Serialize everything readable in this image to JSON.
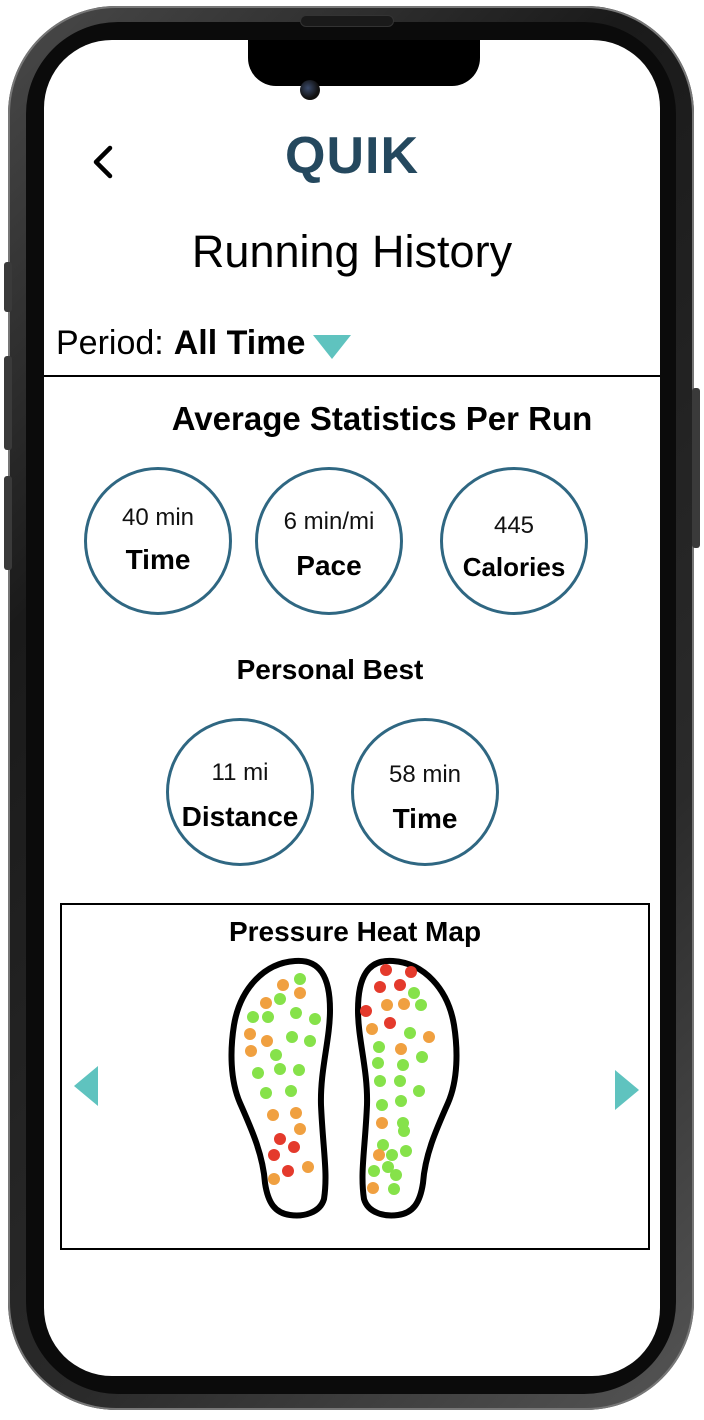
{
  "header": {
    "app_title": "QUIK",
    "page_title": "Running History"
  },
  "period": {
    "label": "Period:",
    "value": "All Time"
  },
  "average_stats": {
    "title": "Average Statistics Per Run",
    "items": [
      {
        "value": "40 min",
        "label": "Time"
      },
      {
        "value": "6 min/mi",
        "label": "Pace"
      },
      {
        "value": "445",
        "label": "Calories"
      }
    ]
  },
  "personal_best": {
    "title": "Personal Best",
    "items": [
      {
        "value": "11 mi",
        "label": "Distance"
      },
      {
        "value": "58 min",
        "label": "Time"
      }
    ]
  },
  "heat_map": {
    "title": "Pressure Heat Map",
    "colors": {
      "low": "#86e24a",
      "medium": "#f0a040",
      "high": "#e43a2c"
    }
  },
  "colors": {
    "accent": "#5fc3bf",
    "brand": "#24485e",
    "circle_border": "#2f6782"
  },
  "icons": {
    "back": "chevron-left-icon",
    "dropdown": "triangle-down-icon",
    "prev": "triangle-left-icon",
    "next": "triangle-right-icon"
  }
}
